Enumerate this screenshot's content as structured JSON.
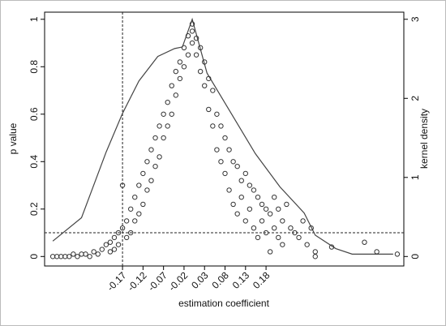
{
  "chart_data": {
    "type": "scatter",
    "xlabel": "estimation coefficient",
    "ylabel": "p value",
    "y2label": "kernel density",
    "color": "#333333",
    "x": [
      -0.34,
      -0.33,
      -0.32,
      -0.31,
      -0.3,
      -0.29,
      -0.28,
      -0.27,
      -0.26,
      -0.25,
      -0.24,
      -0.23,
      -0.22,
      -0.21,
      -0.2,
      -0.2,
      -0.19,
      -0.19,
      -0.18,
      -0.18,
      -0.17,
      -0.17,
      -0.16,
      -0.16,
      -0.15,
      -0.15,
      -0.14,
      -0.14,
      -0.13,
      -0.13,
      -0.12,
      -0.12,
      -0.11,
      -0.11,
      -0.1,
      -0.1,
      -0.09,
      -0.09,
      -0.08,
      -0.08,
      -0.07,
      -0.07,
      -0.06,
      -0.06,
      -0.05,
      -0.05,
      -0.04,
      -0.04,
      -0.03,
      -0.03,
      -0.02,
      -0.02,
      -0.01,
      -0.01,
      0,
      0,
      0,
      0.01,
      0.01,
      0.02,
      0.02,
      0.03,
      0.03,
      0.04,
      0.04,
      0.05,
      0.05,
      0.06,
      0.06,
      0.07,
      0.07,
      0.08,
      0.08,
      0.09,
      0.09,
      0.1,
      0.1,
      0.11,
      0.11,
      0.12,
      0.12,
      0.13,
      0.13,
      0.14,
      0.14,
      0.15,
      0.15,
      0.16,
      0.16,
      0.17,
      0.17,
      0.18,
      0.18,
      0.19,
      0.19,
      0.2,
      0.2,
      0.21,
      0.21,
      0.22,
      0.22,
      0.23,
      0.24,
      0.25,
      0.26,
      0.27,
      0.28,
      0.29,
      0.3,
      0.3,
      0.34,
      0.42,
      0.45,
      0.5
    ],
    "values": [
      0,
      0,
      0,
      0,
      0,
      0.01,
      0,
      0.01,
      0.01,
      0,
      0.02,
      0.01,
      0.03,
      0.05,
      0.02,
      0.06,
      0.08,
      0.03,
      0.1,
      0.05,
      0.12,
      0.3,
      0.15,
      0.08,
      0.2,
      0.1,
      0.25,
      0.15,
      0.3,
      0.18,
      0.35,
      0.22,
      0.4,
      0.28,
      0.45,
      0.32,
      0.5,
      0.38,
      0.55,
      0.42,
      0.6,
      0.5,
      0.65,
      0.55,
      0.72,
      0.6,
      0.78,
      0.68,
      0.82,
      0.75,
      0.88,
      0.8,
      0.93,
      0.85,
      0.98,
      0.95,
      0.9,
      0.92,
      0.85,
      0.88,
      0.78,
      0.82,
      0.72,
      0.75,
      0.62,
      0.7,
      0.55,
      0.6,
      0.45,
      0.55,
      0.4,
      0.5,
      0.35,
      0.45,
      0.28,
      0.4,
      0.22,
      0.38,
      0.18,
      0.32,
      0.25,
      0.35,
      0.15,
      0.3,
      0.2,
      0.28,
      0.12,
      0.25,
      0.08,
      0.22,
      0.15,
      0.2,
      0.1,
      0.18,
      0.02,
      0.25,
      0.12,
      0.2,
      0.08,
      0.15,
      0.05,
      0.22,
      0.12,
      0.1,
      0.08,
      0.15,
      0.05,
      0.12,
      0.02,
      0,
      0.04,
      0.06,
      0.02,
      0.01
    ],
    "density": {
      "type": "line",
      "axis": "y2",
      "color": "#444444",
      "x": [
        -0.34,
        -0.27,
        -0.21,
        -0.17,
        -0.13,
        -0.084,
        -0.043,
        -0.024,
        0.0,
        0.036,
        0.095,
        0.154,
        0.214,
        0.273,
        0.3,
        0.35,
        0.39,
        0.49
      ],
      "values": [
        0.195,
        0.49,
        1.32,
        1.81,
        2.22,
        2.53,
        2.63,
        2.65,
        3.0,
        2.32,
        1.81,
        1.3,
        0.88,
        0.55,
        0.27,
        0.1,
        0.03,
        0.03
      ]
    },
    "vline": -0.17,
    "hline": 0.1,
    "xlim": [
      -0.36,
      0.516
    ],
    "ylim": [
      -0.04,
      1.03
    ],
    "y2lim": [
      -0.12,
      3.09
    ],
    "xticks": [
      -0.17,
      -0.12,
      -0.07,
      -0.02,
      0.03,
      0.08,
      0.13,
      0.18
    ],
    "yticks": [
      0,
      0.2,
      0.4,
      0.6,
      0.8,
      1
    ],
    "y2ticks": [
      0,
      1,
      2,
      3
    ]
  }
}
